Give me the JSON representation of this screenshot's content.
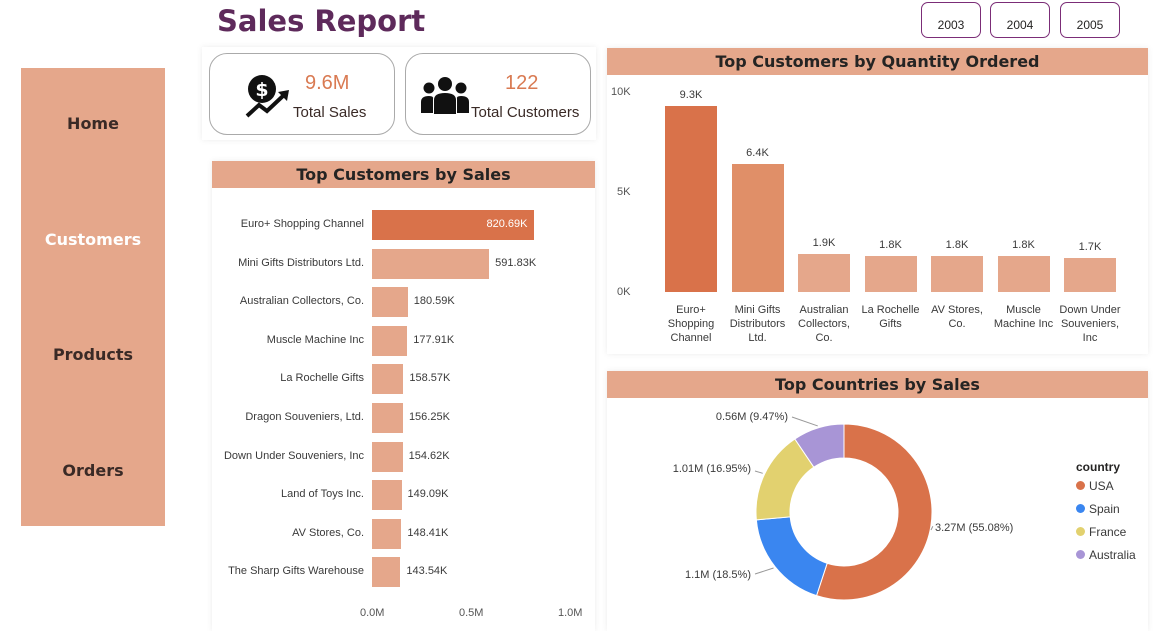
{
  "header": {
    "title": "Sales Report"
  },
  "year_buttons": [
    "2003",
    "2004",
    "2005"
  ],
  "sidebar": {
    "items": [
      {
        "label": "Home",
        "active": false
      },
      {
        "label": "Customers",
        "active": true
      },
      {
        "label": "Products",
        "active": false
      },
      {
        "label": "Orders",
        "active": false
      }
    ]
  },
  "kpis": {
    "sales": {
      "value": "9.6M",
      "label": "Total Sales",
      "icon": "money-growth-icon"
    },
    "customers": {
      "value": "122",
      "label": "Total Customers",
      "icon": "people-group-icon"
    }
  },
  "colors": {
    "accent": "#d9724a",
    "bar": "#e5a78b",
    "header": "#e5a78b",
    "title": "#5e2a5b",
    "usa": "#d9724a",
    "spain": "#3a86f0",
    "france": "#e2d16f",
    "australia": "#a895d6"
  },
  "chart_data": [
    {
      "id": "sales",
      "type": "bar",
      "orientation": "horizontal",
      "title": "Top Customers by Sales",
      "categories": [
        "Euro+ Shopping Channel",
        "Mini Gifts Distributors Ltd.",
        "Australian Collectors, Co.",
        "Muscle Machine Inc",
        "La Rochelle Gifts",
        "Dragon Souveniers, Ltd.",
        "Down Under Souveniers, Inc",
        "Land of Toys Inc.",
        "AV Stores, Co.",
        "The Sharp Gifts Warehouse"
      ],
      "values": [
        820690,
        591830,
        180590,
        177910,
        158570,
        156250,
        154620,
        149090,
        148410,
        143540
      ],
      "labels": [
        "820.69K",
        "591.83K",
        "180.59K",
        "177.91K",
        "158.57K",
        "156.25K",
        "154.62K",
        "149.09K",
        "148.41K",
        "143.54K"
      ],
      "xlim": [
        0,
        1000000
      ],
      "xticks": [
        "0.0M",
        "0.5M",
        "1.0M"
      ]
    },
    {
      "id": "quantity",
      "type": "bar",
      "title": "Top Customers by Quantity Ordered",
      "categories": [
        "Euro+ Shopping Channel",
        "Mini Gifts Distributors Ltd.",
        "Australian Collectors, Co.",
        "La Rochelle Gifts",
        "AV Stores, Co.",
        "Muscle Machine Inc",
        "Down Under Souveniers, Inc"
      ],
      "category_lines": [
        [
          "Euro+",
          "Shopping",
          "Channel"
        ],
        [
          "Mini Gifts",
          "Distributors",
          "Ltd."
        ],
        [
          "Australian",
          "Collectors,",
          "Co."
        ],
        [
          "La Rochelle",
          "Gifts"
        ],
        [
          "AV Stores,",
          "Co."
        ],
        [
          "Muscle",
          "Machine Inc"
        ],
        [
          "Down Under",
          "Souveniers,",
          "Inc"
        ]
      ],
      "values": [
        9300,
        6400,
        1900,
        1800,
        1800,
        1800,
        1700
      ],
      "labels": [
        "9.3K",
        "6.4K",
        "1.9K",
        "1.8K",
        "1.8K",
        "1.8K",
        "1.7K"
      ],
      "ylim": [
        0,
        10000
      ],
      "yticks": [
        "0K",
        "5K",
        "10K"
      ]
    },
    {
      "id": "countries",
      "type": "pie",
      "title": "Top Countries by Sales",
      "legend_title": "country",
      "slices": [
        {
          "name": "USA",
          "value": 3.27,
          "label": "3.27M (55.08%)",
          "color": "#d9724a"
        },
        {
          "name": "Spain",
          "value": 1.1,
          "label": "1.1M (18.5%)",
          "color": "#3a86f0"
        },
        {
          "name": "France",
          "value": 1.01,
          "label": "1.01M (16.95%)",
          "color": "#e2d16f"
        },
        {
          "name": "Australia",
          "value": 0.56,
          "label": "0.56M (9.47%)",
          "color": "#a895d6"
        }
      ]
    }
  ]
}
